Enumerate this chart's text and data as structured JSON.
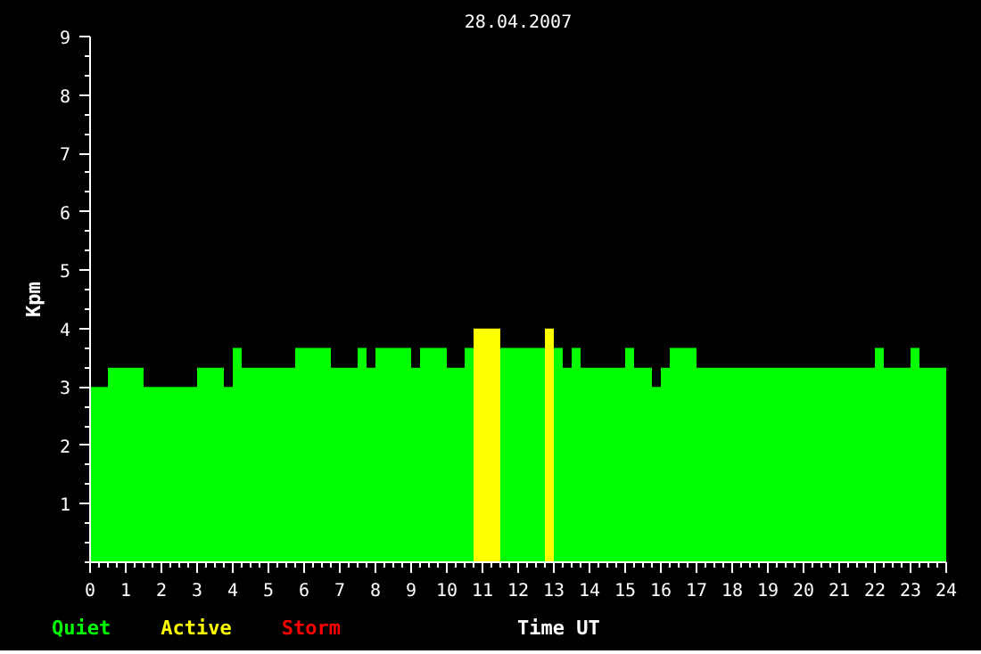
{
  "chart_data": {
    "type": "histogram",
    "title": "28.04.2007",
    "xlabel": "Time UT",
    "ylabel": "Kpm",
    "bins": [
      0,
      0.5,
      1.5,
      3,
      3.75,
      4,
      4.25,
      5.75,
      6.75,
      7.5,
      7.75,
      8,
      9,
      9.25,
      10,
      10.5,
      10.75,
      11.5,
      12.75,
      13,
      13.25,
      13.5,
      13.75,
      15,
      15.25,
      15.75,
      16,
      16.25,
      17,
      22,
      22.25,
      23,
      23.25,
      24
    ],
    "series": [
      {
        "name": "Quiet",
        "color": "#00ff00",
        "values": [
          3,
          3.33,
          3,
          3.33,
          3,
          3.67,
          3.33,
          3.67,
          3.33,
          3.67,
          3.33,
          3.67,
          3.33,
          3.67,
          3.33,
          3.67,
          null,
          3.67,
          null,
          3.67,
          3.33,
          3.67,
          3.33,
          3.67,
          3.33,
          3,
          3.33,
          3.67,
          3.33,
          3.67,
          3.33,
          3.67,
          3.33
        ]
      },
      {
        "name": "Active",
        "color": "#ffff00",
        "values": [
          null,
          null,
          null,
          null,
          null,
          null,
          null,
          null,
          null,
          null,
          null,
          null,
          null,
          null,
          null,
          null,
          4,
          null,
          4,
          null,
          null,
          null,
          null,
          null,
          null,
          null,
          null,
          null,
          null,
          null,
          null,
          null,
          null
        ]
      }
    ],
    "annotations": [
      "Storm"
    ],
    "xlim": [
      0,
      24
    ],
    "xticks": [
      0,
      1,
      2,
      3,
      4,
      5,
      6,
      7,
      8,
      9,
      10,
      11,
      12,
      13,
      14,
      15,
      16,
      17,
      18,
      19,
      20,
      21,
      22,
      23,
      24
    ],
    "ylim": [
      0,
      9
    ],
    "yticks": [
      1,
      2,
      3,
      4,
      5,
      6,
      7,
      8,
      9
    ],
    "legend": "bottom left",
    "grid": false
  }
}
